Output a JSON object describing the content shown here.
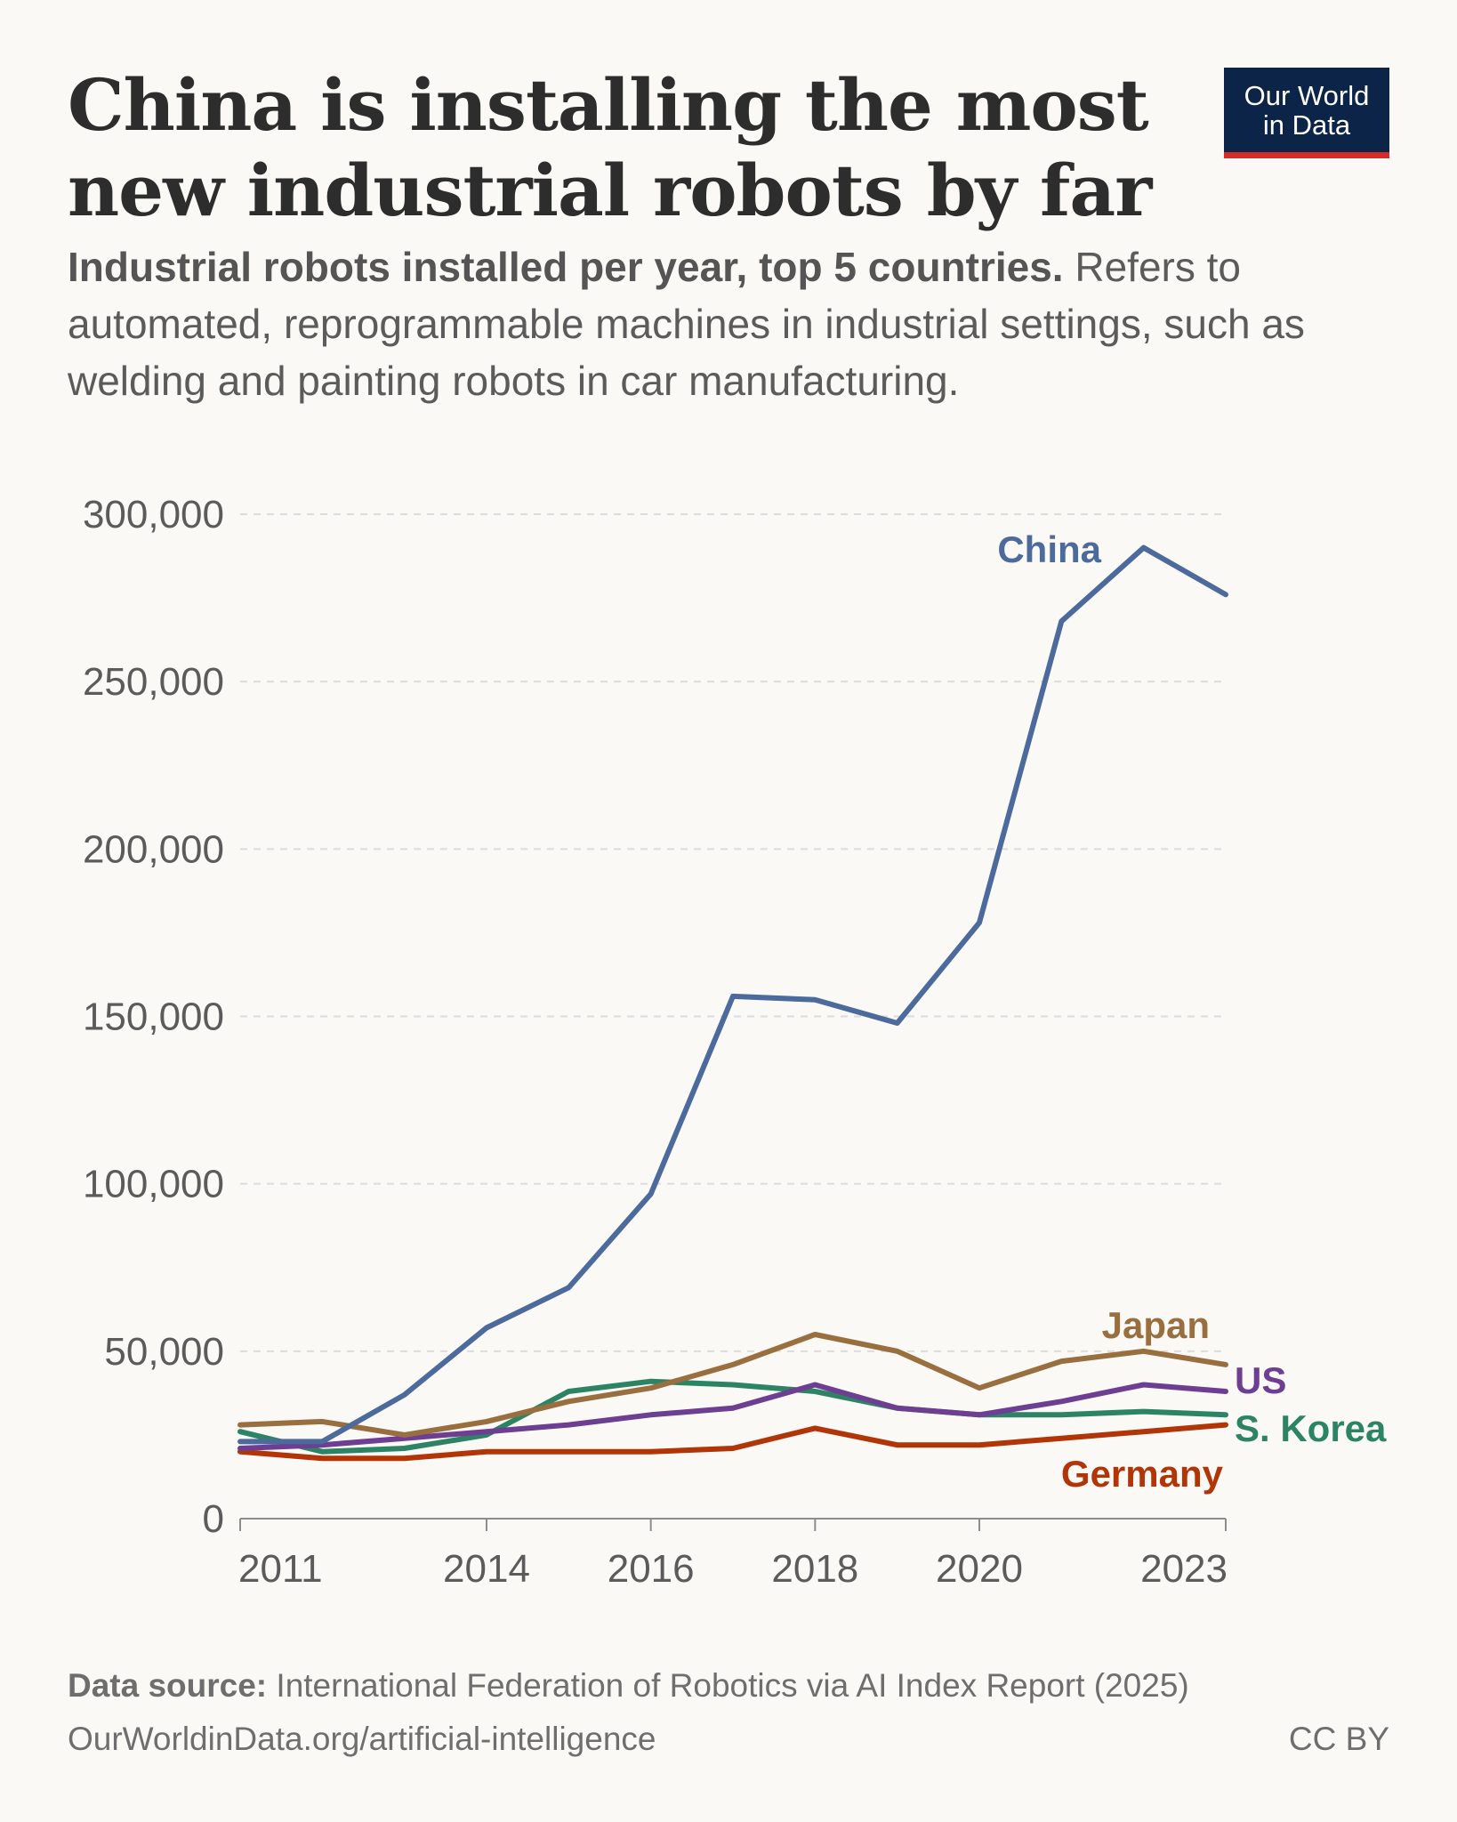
{
  "header": {
    "title": "China is installing the most new industrial robots by far",
    "subtitle_bold": "Industrial robots installed per year, top 5 countries.",
    "subtitle_rest": " Refers to automated, reprogrammable machines in industrial settings, such as welding and painting robots in car manufacturing."
  },
  "logo": {
    "line1": "Our World",
    "line2": "in Data"
  },
  "footer": {
    "source_label": "Data source:",
    "source_text": " International Federation of Robotics via AI Index Report (2025)",
    "url": "OurWorldinData.org/artificial-intelligence",
    "license": "CC BY"
  },
  "chart_data": {
    "type": "line",
    "title": "Industrial robots installed per year, top 5 countries",
    "xlabel": "",
    "ylabel": "",
    "x": [
      2011,
      2012,
      2013,
      2014,
      2015,
      2016,
      2017,
      2018,
      2019,
      2020,
      2021,
      2022,
      2023
    ],
    "xlim": [
      2011,
      2023
    ],
    "ylim": [
      0,
      300000
    ],
    "y_ticks": [
      0,
      50000,
      100000,
      150000,
      200000,
      250000,
      300000
    ],
    "y_tick_labels": [
      "0",
      "50,000",
      "100,000",
      "150,000",
      "200,000",
      "250,000",
      "300,000"
    ],
    "x_ticks": [
      2011,
      2014,
      2016,
      2018,
      2020,
      2023
    ],
    "x_tick_labels": [
      "2011",
      "2014",
      "2016",
      "2018",
      "2020",
      "2023"
    ],
    "grid": true,
    "series": [
      {
        "name": "China",
        "color": "#4c6a9c",
        "values": [
          23000,
          23000,
          37000,
          57000,
          69000,
          97000,
          156000,
          155000,
          148000,
          178000,
          268000,
          290000,
          276000
        ]
      },
      {
        "name": "Japan",
        "color": "#9a6f3f",
        "values": [
          28000,
          29000,
          25000,
          29000,
          35000,
          39000,
          46000,
          55000,
          50000,
          39000,
          47000,
          50000,
          46000
        ]
      },
      {
        "name": "US",
        "color": "#6d3e91",
        "values": [
          21000,
          22000,
          24000,
          26000,
          28000,
          31000,
          33000,
          40000,
          33000,
          31000,
          35000,
          40000,
          38000
        ]
      },
      {
        "name": "S. Korea",
        "color": "#2c8465",
        "values": [
          26000,
          20000,
          21000,
          25000,
          38000,
          41000,
          40000,
          38000,
          33000,
          31000,
          31000,
          32000,
          31000
        ]
      },
      {
        "name": "Germany",
        "color": "#b13507",
        "values": [
          20000,
          18000,
          18000,
          20000,
          20000,
          20000,
          21000,
          27000,
          22000,
          22000,
          24000,
          26000,
          28000
        ]
      }
    ]
  }
}
